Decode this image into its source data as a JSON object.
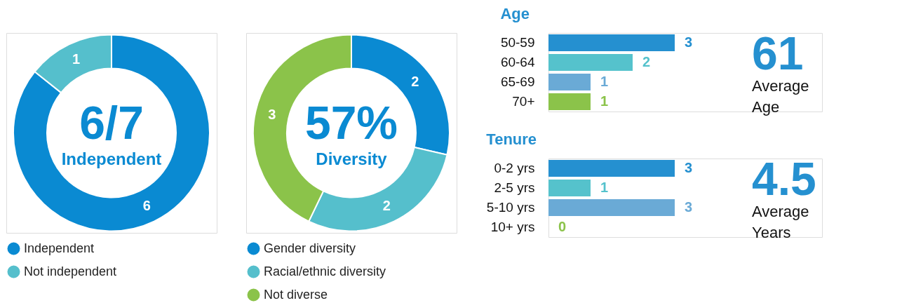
{
  "chart_data": [
    {
      "type": "donut",
      "categories": [
        "Independent",
        "Not independent"
      ],
      "values": [
        6,
        1
      ],
      "colors": [
        "#0a8ad2",
        "#55bfcc"
      ],
      "data_labels": true,
      "legend": "bottom",
      "annotations": [
        "6/7",
        "Independent"
      ]
    },
    {
      "type": "donut",
      "categories": [
        "Gender diversity",
        "Racial/ethnic diversity",
        "Not diverse"
      ],
      "values": [
        2,
        2,
        3
      ],
      "colors": [
        "#0a8ad2",
        "#55bfcc",
        "#8bc34a"
      ],
      "data_labels": true,
      "legend": "bottom",
      "annotations": [
        "57%",
        "Diversity"
      ]
    },
    {
      "type": "bar",
      "orientation": "horizontal",
      "title": "Age",
      "categories": [
        "50-59",
        "60-64",
        "65-69",
        "70+"
      ],
      "values": [
        3,
        2,
        1,
        1
      ],
      "colors": [
        "#2590d0",
        "#55c2cc",
        "#6aaad6",
        "#8bc34a"
      ],
      "data_labels": true,
      "annotations": [
        "61",
        "Average Age"
      ]
    },
    {
      "type": "bar",
      "orientation": "horizontal",
      "title": "Tenure",
      "categories": [
        "0-2 yrs",
        "2-5 yrs",
        "5-10 yrs",
        "10+ yrs"
      ],
      "values": [
        3,
        1,
        3,
        0
      ],
      "colors": [
        "#2590d0",
        "#55c2cc",
        "#6aaad6",
        "#8bc34a"
      ],
      "data_labels": true,
      "annotations": [
        "4.5",
        "Average Years"
      ]
    }
  ]
}
